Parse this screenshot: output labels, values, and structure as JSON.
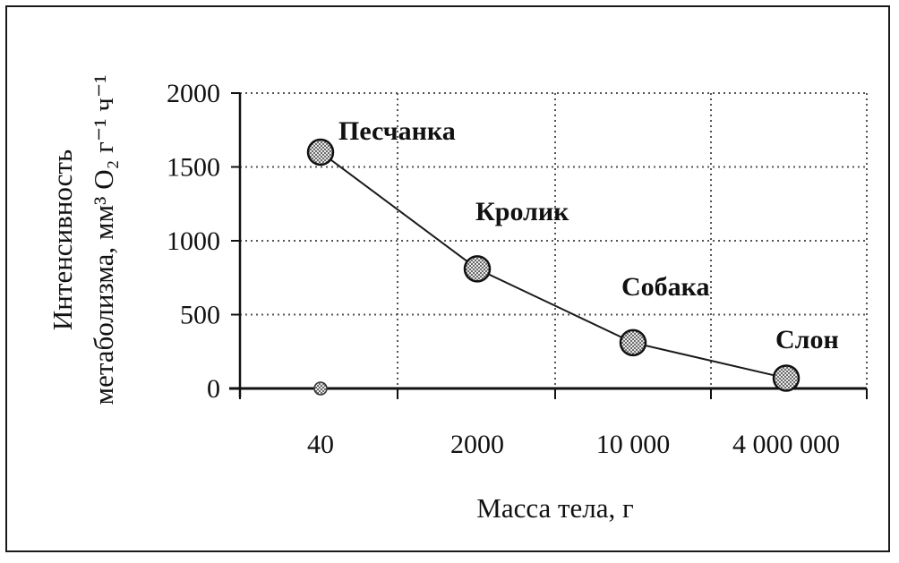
{
  "chart_data": {
    "type": "line",
    "categories": [
      "40",
      "2000",
      "10 000",
      "4 000 000"
    ],
    "values": [
      1600,
      810,
      310,
      70
    ],
    "point_labels": [
      "Песчанка",
      "Кролик",
      "Собака",
      "Слон"
    ],
    "xlabel": "Масса тела, г",
    "ylabel_line1": "Интенсивность",
    "ylabel_line2": "метаболизма, мм³ O₂ г⁻¹ ч⁻¹",
    "ylim": [
      0,
      2000
    ],
    "yticks": [
      "0",
      "500",
      "1000",
      "1500",
      "2000"
    ],
    "ytick_values": [
      0,
      500,
      1000,
      1500,
      2000
    ],
    "grid": true,
    "colors": {
      "line": "#1a1a1a",
      "marker_fill": "#9a9a9a",
      "grid": "#555555"
    }
  }
}
